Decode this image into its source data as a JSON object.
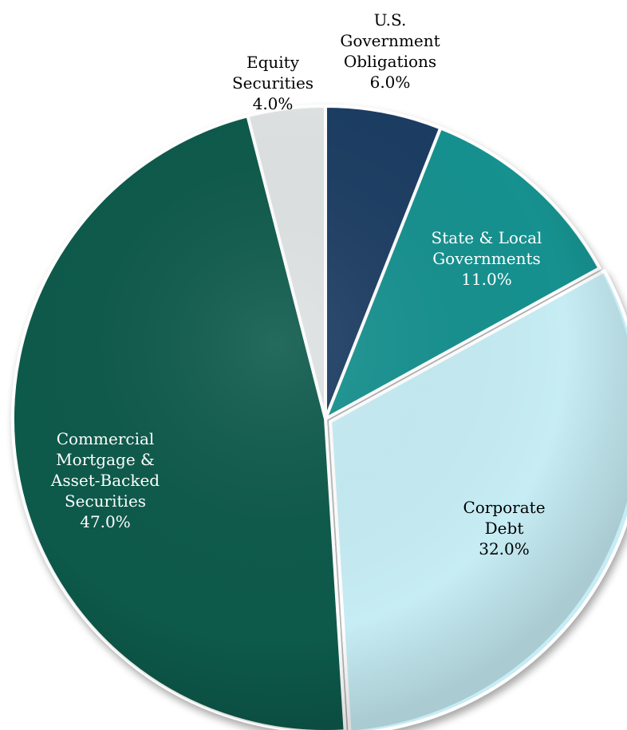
{
  "chart_data": {
    "type": "pie",
    "title": "",
    "slices": [
      {
        "label_lines": [
          "U.S.",
          "Government",
          "Obligations"
        ],
        "value": 6.0,
        "value_label": "6.0%",
        "color": "#1d3c63",
        "label_color": "#000000",
        "label_outside": true
      },
      {
        "label_lines": [
          "State & Local",
          "Governments"
        ],
        "value": 11.0,
        "value_label": "11.0%",
        "color": "#17918f",
        "label_color": "#ffffff",
        "label_outside": false
      },
      {
        "label_lines": [
          "Corporate",
          "Debt"
        ],
        "value": 32.0,
        "value_label": "32.0%",
        "color": "#c6ecf4",
        "label_color": "#000000",
        "label_outside": false
      },
      {
        "label_lines": [
          "Commercial",
          "Mortgage &",
          "Asset-Backed",
          "Securities"
        ],
        "value": 47.0,
        "value_label": "47.0%",
        "color": "#0b5a4c",
        "label_color": "#ffffff",
        "label_outside": false
      },
      {
        "label_lines": [
          "Equity",
          "Securities"
        ],
        "value": 4.0,
        "value_label": "4.0%",
        "color": "#dfe3e3",
        "label_color": "#000000",
        "label_outside": true
      }
    ]
  }
}
